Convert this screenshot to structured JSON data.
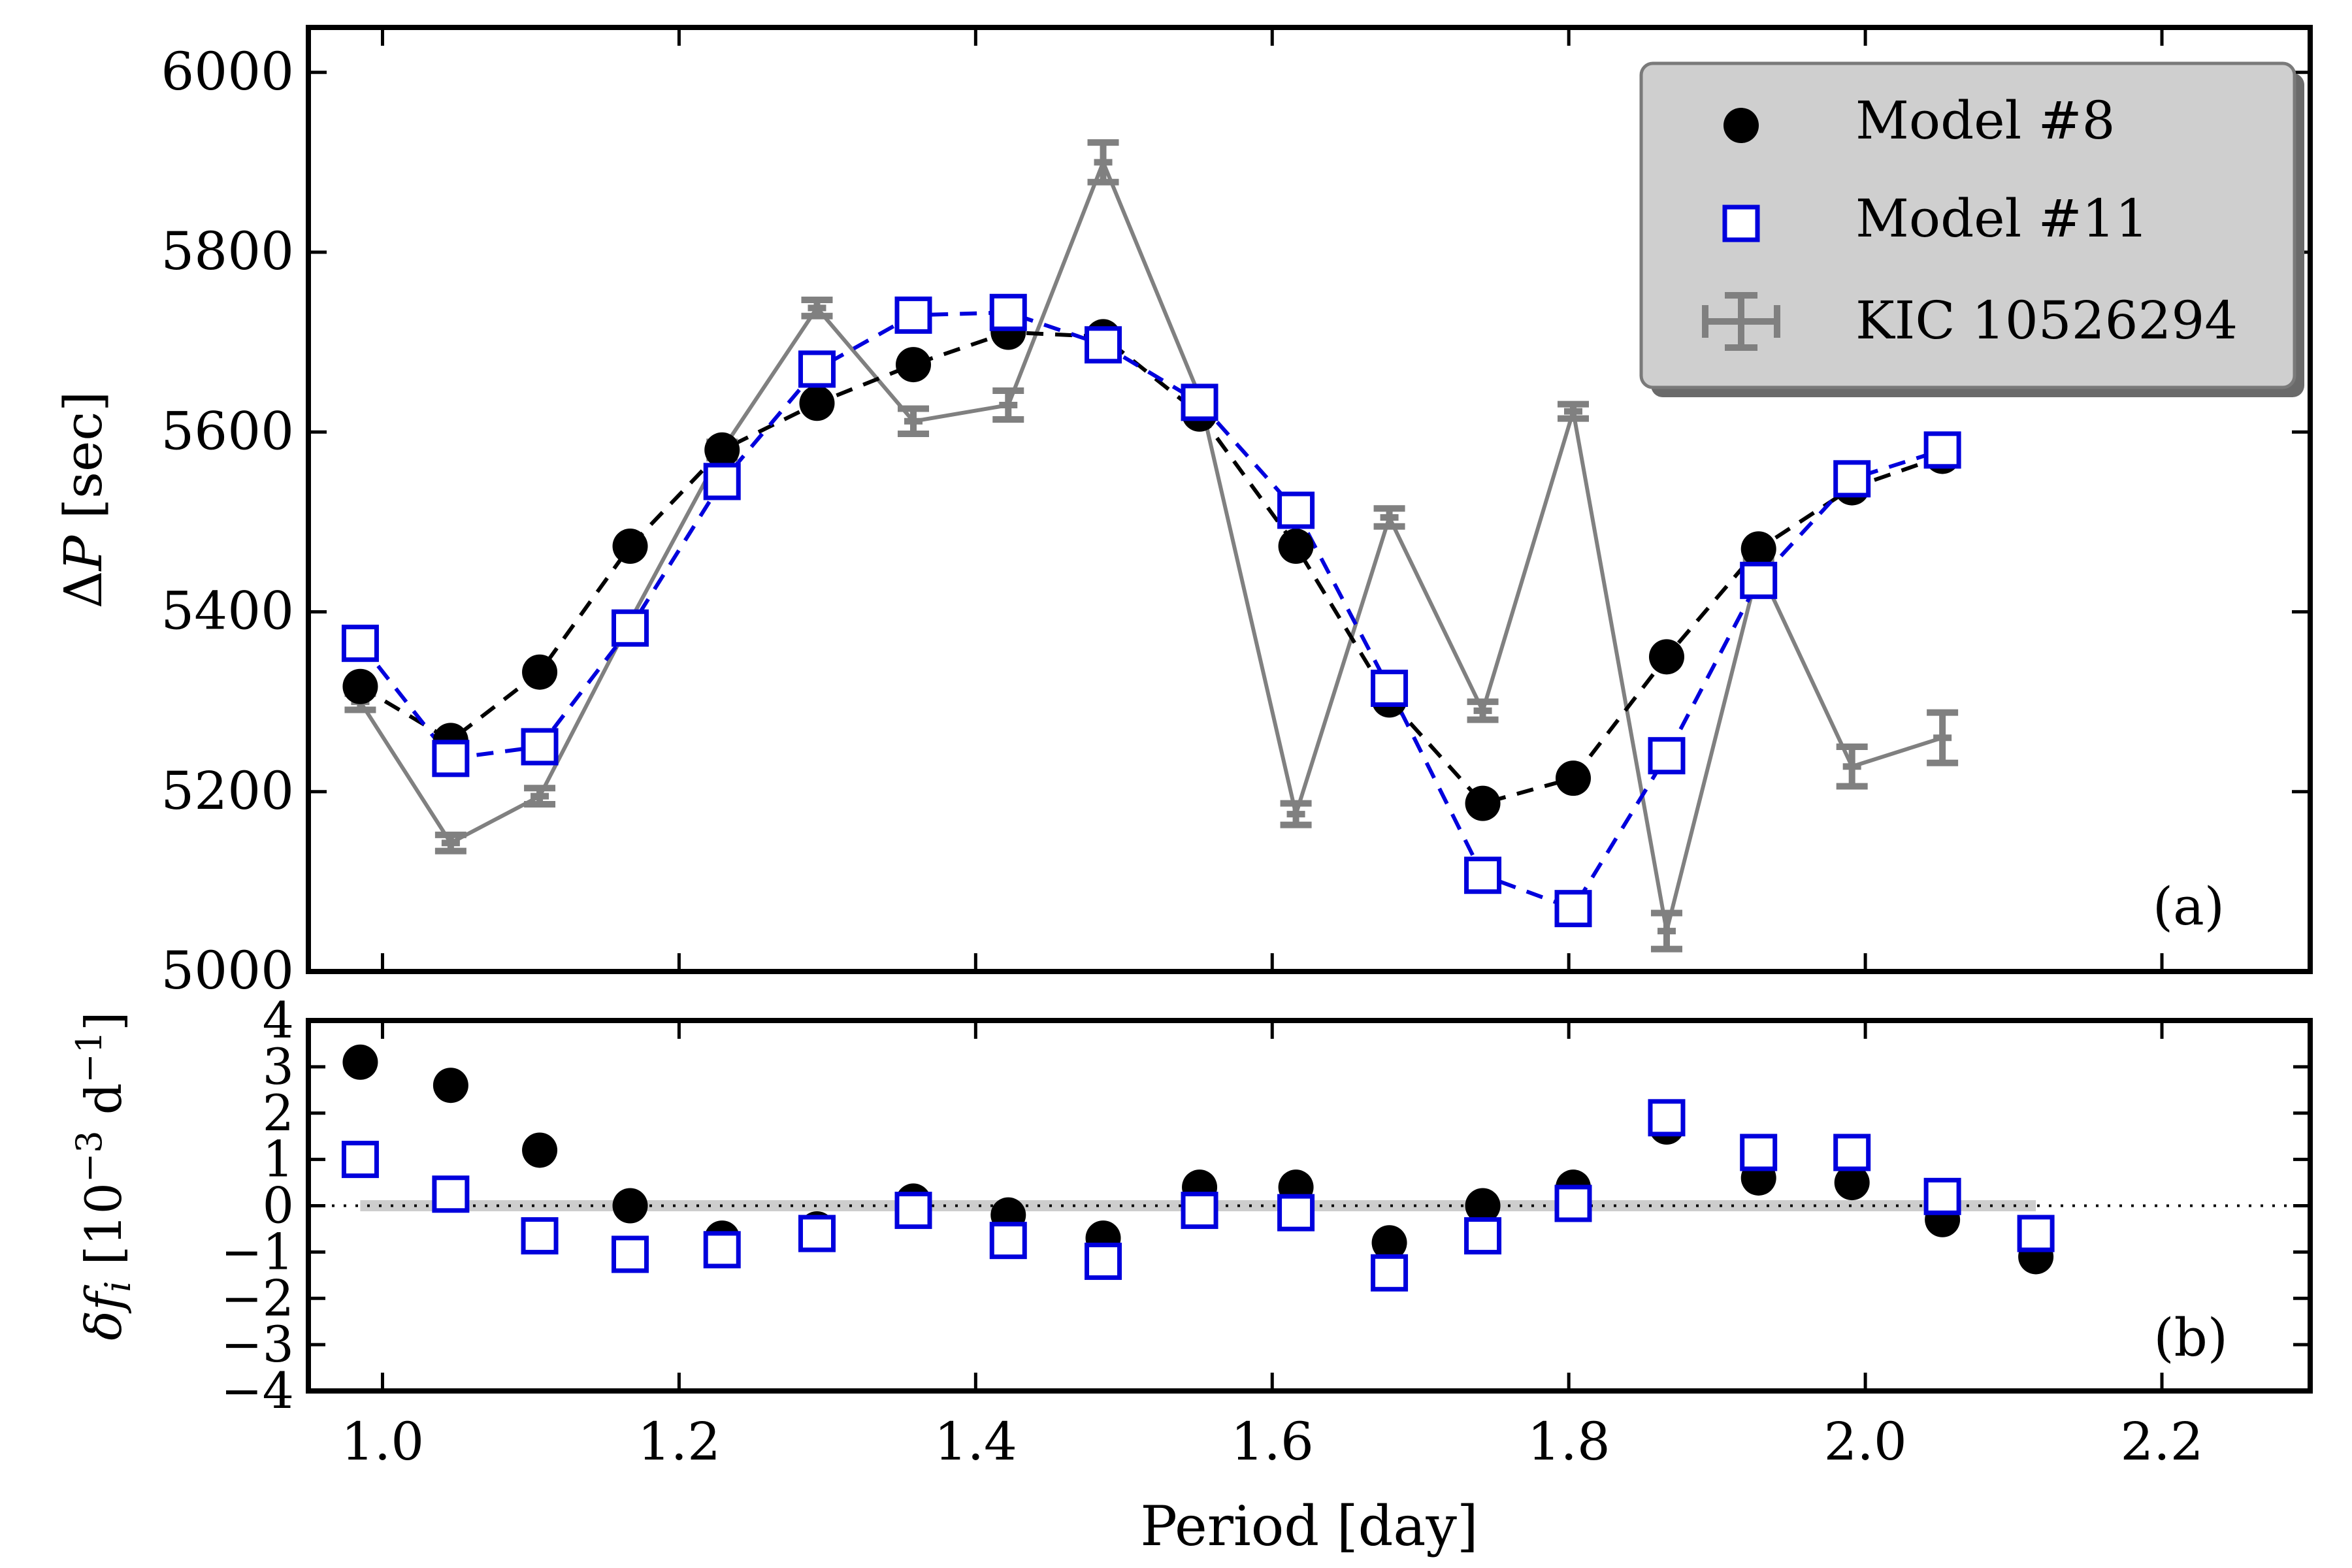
{
  "chart_data": [
    {
      "panel": "a",
      "type": "line",
      "panel_label": "(a)",
      "ylabel": "ΔP [sec]",
      "ylabel_var": "P",
      "ylabel_unit": " [sec]",
      "xlim": [
        0.95,
        2.3
      ],
      "ylim": [
        5000,
        6050
      ],
      "yticks": [
        5000,
        5200,
        5400,
        5600,
        5800,
        6000
      ],
      "legend_position": "top-right",
      "legend": [
        {
          "label": "Model #8",
          "marker": "circle",
          "color": "#000000"
        },
        {
          "label": "Model #11",
          "marker": "square",
          "color": "#0000dd"
        },
        {
          "label": "KIC 10526294",
          "marker": "errorbar",
          "color": "#808080"
        }
      ],
      "series": [
        {
          "name": "Model #8",
          "color": "#000000",
          "marker": "circle",
          "line": "dashed",
          "x": [
            0.985,
            1.046,
            1.106,
            1.167,
            1.229,
            1.293,
            1.358,
            1.422,
            1.486,
            1.551,
            1.616,
            1.679,
            1.742,
            1.803,
            1.866,
            1.928,
            1.991,
            2.052
          ],
          "y": [
            5317,
            5257,
            5333,
            5473,
            5580,
            5632,
            5675,
            5711,
            5706,
            5620,
            5473,
            5302,
            5187,
            5215,
            5350,
            5470,
            5538,
            5573
          ]
        },
        {
          "name": "Model #11",
          "color": "#0000dd",
          "marker": "square",
          "line": "dashed",
          "x": [
            0.985,
            1.046,
            1.106,
            1.167,
            1.229,
            1.293,
            1.358,
            1.422,
            1.486,
            1.551,
            1.616,
            1.679,
            1.742,
            1.803,
            1.866,
            1.928,
            1.991,
            2.052
          ],
          "y": [
            5365,
            5237,
            5250,
            5382,
            5545,
            5670,
            5730,
            5733,
            5697,
            5633,
            5513,
            5315,
            5107,
            5070,
            5240,
            5435,
            5548,
            5580
          ]
        },
        {
          "name": "KIC 10526294",
          "color": "#808080",
          "marker": "errorbar",
          "line": "solid",
          "x": [
            0.985,
            1.046,
            1.106,
            1.167,
            1.229,
            1.293,
            1.358,
            1.422,
            1.486,
            1.551,
            1.616,
            1.679,
            1.742,
            1.803,
            1.866,
            1.928,
            1.991,
            2.052
          ],
          "y": [
            5300,
            5143,
            5195,
            5390,
            5580,
            5738,
            5612,
            5630,
            5900,
            5640,
            5175,
            5505,
            5290,
            5623,
            5045,
            5450,
            5228,
            5260
          ],
          "yerr": [
            9,
            9,
            9,
            9,
            9,
            9,
            14,
            16,
            22,
            9,
            12,
            10,
            10,
            8,
            20,
            9,
            22,
            28
          ],
          "connect": [
            [
              0,
              1,
              2,
              3,
              4,
              5,
              6,
              7,
              8,
              9,
              10,
              11,
              12,
              13,
              14,
              15,
              16
            ],
            [
              16,
              17
            ]
          ]
        }
      ]
    },
    {
      "panel": "b",
      "type": "scatter",
      "panel_label": "(b)",
      "ylabel": "δf_i [10^−3 d^−1]",
      "ylabel_parts": {
        "delta": "δ",
        "f": "f",
        "sub": "i",
        "bracket_open": " [10",
        "exp1": "−3",
        "mid": " d",
        "exp2": "−1",
        "bracket_close": "]"
      },
      "xlabel": "Period [day]",
      "xlim": [
        0.95,
        2.3
      ],
      "ylim": [
        -4,
        4
      ],
      "xticks": [
        1.0,
        1.2,
        1.4,
        1.6,
        1.8,
        2.0,
        2.2
      ],
      "xtick_labels": [
        "1.0",
        "1.2",
        "1.4",
        "1.6",
        "1.8",
        "2.0",
        "2.2"
      ],
      "yticks": [
        -4,
        -3,
        -2,
        -1,
        0,
        1,
        2,
        3,
        4
      ],
      "ytick_labels": [
        "−4",
        "−3",
        "−2",
        "−1",
        "0",
        "1",
        "2",
        "3",
        "4"
      ],
      "zero_line": "dotted",
      "band": {
        "x": [
          0.985,
          2.115
        ],
        "halfwidth": 0.12,
        "color": "#c0c0c0"
      },
      "series": [
        {
          "name": "Model #8",
          "color": "#000000",
          "marker": "circle",
          "x": [
            0.985,
            1.046,
            1.106,
            1.167,
            1.229,
            1.293,
            1.358,
            1.422,
            1.486,
            1.551,
            1.616,
            1.679,
            1.742,
            1.803,
            1.866,
            1.928,
            1.991,
            2.052,
            2.115
          ],
          "y": [
            3.1,
            2.6,
            1.2,
            0.0,
            -0.7,
            -0.5,
            0.1,
            -0.2,
            -0.7,
            0.4,
            0.4,
            -0.8,
            0.0,
            0.4,
            1.7,
            0.6,
            0.5,
            -0.3,
            -1.1
          ]
        },
        {
          "name": "Model #11",
          "color": "#0000dd",
          "marker": "square",
          "x": [
            0.985,
            1.046,
            1.106,
            1.167,
            1.229,
            1.293,
            1.358,
            1.422,
            1.486,
            1.551,
            1.616,
            1.679,
            1.742,
            1.803,
            1.866,
            1.928,
            1.991,
            2.052,
            2.115
          ],
          "y": [
            1.0,
            0.25,
            -0.65,
            -1.05,
            -0.95,
            -0.6,
            -0.1,
            -0.75,
            -1.2,
            -0.1,
            -0.15,
            -1.45,
            -0.65,
            0.05,
            1.9,
            1.15,
            1.15,
            0.2,
            -0.6
          ]
        }
      ]
    }
  ]
}
